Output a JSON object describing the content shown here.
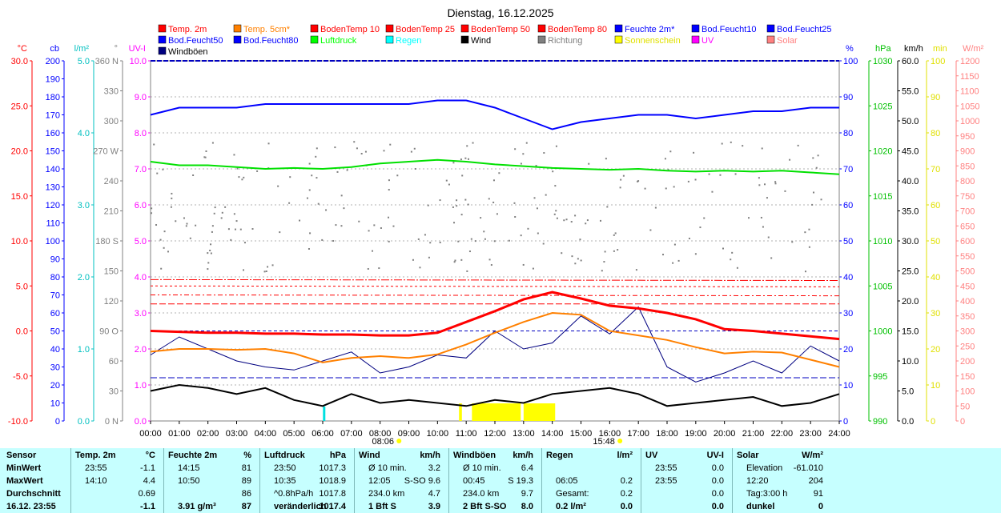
{
  "chart_data": {
    "type": "line",
    "title": "Dienstag, 16.12.2025",
    "x_ticks": [
      "00:00",
      "01:00",
      "02:00",
      "03:00",
      "04:00",
      "05:00",
      "06:00",
      "07:00",
      "08:00",
      "09:00",
      "10:00",
      "11:00",
      "12:00",
      "13:00",
      "14:00",
      "15:00",
      "16:00",
      "17:00",
      "18:00",
      "19:00",
      "20:00",
      "21:00",
      "22:00",
      "23:00",
      "24:00"
    ],
    "sunrise_label": "08:06",
    "sunset_label": "15:48",
    "legend": [
      {
        "name": "Temp. 2m",
        "color": "#ff0000"
      },
      {
        "name": "Temp. 5cm*",
        "color": "#ff8000"
      },
      {
        "name": "BodenTemp 10",
        "color": "#ff0000"
      },
      {
        "name": "BodenTemp 25",
        "color": "#ff0000"
      },
      {
        "name": "BodenTemp 50",
        "color": "#ff0000"
      },
      {
        "name": "BodenTemp 80",
        "color": "#ff0000"
      },
      {
        "name": "Feuchte 2m*",
        "color": "#0000ff"
      },
      {
        "name": "Bod.Feucht10",
        "color": "#0000ff"
      },
      {
        "name": "Bod.Feucht25",
        "color": "#0000ff"
      },
      {
        "name": "Bod.Feucht50",
        "color": "#0000ff"
      },
      {
        "name": "Bod.Feucht80",
        "color": "#0000ff"
      },
      {
        "name": "Luftdruck",
        "color": "#00ff00"
      },
      {
        "name": "Regen",
        "color": "#00ffff"
      },
      {
        "name": "Wind",
        "color": "#000000"
      },
      {
        "name": "Richtung",
        "color": "#808080"
      },
      {
        "name": "Sonnenschein",
        "color": "#ffff00"
      },
      {
        "name": "UV",
        "color": "#ff00ff"
      },
      {
        "name": "Solar",
        "color": "#ff8080"
      },
      {
        "name": "Windböen",
        "color": "#000080"
      }
    ],
    "axes": [
      {
        "unit": "°C",
        "color": "#ff0000",
        "ticks": [
          "30.0",
          "25.0",
          "20.0",
          "15.0",
          "10.0",
          "5.0",
          "0.0",
          "-5.0",
          "-10.0"
        ]
      },
      {
        "unit": "cb",
        "color": "#0000ff",
        "ticks": [
          "200",
          "190",
          "180",
          "170",
          "160",
          "150",
          "140",
          "130",
          "120",
          "110",
          "100",
          "90",
          "80",
          "70",
          "60",
          "50",
          "40",
          "30",
          "20",
          "10",
          "0"
        ]
      },
      {
        "unit": "l/m²",
        "color": "#00c0c0",
        "ticks": [
          "5.0",
          "4.0",
          "3.0",
          "2.0",
          "1.0",
          "0.0"
        ]
      },
      {
        "unit": "°",
        "color": "#808080",
        "ticks": [
          "360 N",
          "330",
          "300",
          "270 W",
          "240",
          "210",
          "180 S",
          "150",
          "120",
          "90 O",
          "60",
          "30",
          "0 N"
        ]
      },
      {
        "unit": "UV-I",
        "color": "#ff00ff",
        "ticks": [
          "10.0",
          "9.0",
          "8.0",
          "7.0",
          "6.0",
          "5.0",
          "4.0",
          "3.0",
          "2.0",
          "1.0",
          "0.0"
        ]
      },
      {
        "unit": "%",
        "color": "#0000ff",
        "ticks": [
          "100",
          "90",
          "80",
          "70",
          "60",
          "50",
          "40",
          "30",
          "20",
          "10",
          "0"
        ]
      },
      {
        "unit": "hPa",
        "color": "#00c000",
        "ticks": [
          "1030",
          "1025",
          "1020",
          "1015",
          "1010",
          "1005",
          "1000",
          "995",
          "990"
        ]
      },
      {
        "unit": "km/h",
        "color": "#000000",
        "ticks": [
          "60.0",
          "55.0",
          "50.0",
          "45.0",
          "40.0",
          "35.0",
          "30.0",
          "25.0",
          "20.0",
          "15.0",
          "10.0",
          "5.0",
          "0.0"
        ]
      },
      {
        "unit": "min",
        "color": "#e0e000",
        "ticks": [
          "100",
          "90",
          "80",
          "70",
          "60",
          "50",
          "40",
          "30",
          "20",
          "10",
          "0"
        ]
      },
      {
        "unit": "W/m²",
        "color": "#ff8080",
        "ticks": [
          "1200",
          "1150",
          "1100",
          "1050",
          "1000",
          "950",
          "900",
          "850",
          "800",
          "750",
          "700",
          "650",
          "600",
          "550",
          "500",
          "450",
          "400",
          "350",
          "300",
          "250",
          "200",
          "150",
          "100",
          "50",
          "0"
        ]
      }
    ],
    "series": [
      {
        "name": "Temp. 2m",
        "unit": "°C",
        "x": [
          0,
          1,
          2,
          3,
          4,
          5,
          6,
          7,
          8,
          9,
          10,
          11,
          12,
          13,
          14,
          15,
          16,
          17,
          18,
          19,
          20,
          21,
          22,
          23,
          24
        ],
        "values": [
          0.0,
          -0.1,
          -0.2,
          -0.2,
          -0.3,
          -0.3,
          -0.4,
          -0.4,
          -0.5,
          -0.5,
          -0.2,
          1.0,
          2.2,
          3.5,
          4.3,
          3.6,
          2.8,
          2.5,
          2.0,
          1.3,
          0.2,
          0.0,
          -0.3,
          -0.6,
          -0.9
        ]
      },
      {
        "name": "Temp. 5cm*",
        "unit": "°C",
        "x": [
          0,
          1,
          2,
          3,
          4,
          5,
          6,
          7,
          8,
          9,
          10,
          11,
          12,
          13,
          14,
          15,
          16,
          17,
          18,
          19,
          20,
          21,
          22,
          23,
          24
        ],
        "values": [
          -2.3,
          -2.0,
          -2.0,
          -2.1,
          -2.0,
          -2.5,
          -3.5,
          -3.0,
          -2.8,
          -3.0,
          -2.6,
          -1.5,
          -0.2,
          1.0,
          2.0,
          1.8,
          0.0,
          -0.5,
          -1.0,
          -1.8,
          -2.5,
          -2.3,
          -2.4,
          -3.2,
          -4.0
        ]
      },
      {
        "name": "BodenTemp 10",
        "unit": "°C",
        "x": [
          0,
          24
        ],
        "values": [
          3.0,
          3.0
        ]
      },
      {
        "name": "BodenTemp 25",
        "unit": "°C",
        "x": [
          0,
          24
        ],
        "values": [
          4.0,
          3.9
        ]
      },
      {
        "name": "BodenTemp 50",
        "unit": "°C",
        "x": [
          0,
          24
        ],
        "values": [
          5.0,
          4.9
        ]
      },
      {
        "name": "BodenTemp 80",
        "unit": "°C",
        "x": [
          0,
          24
        ],
        "values": [
          5.7,
          5.6
        ]
      },
      {
        "name": "Feuchte 2m*",
        "unit": "%",
        "x": [
          0,
          1,
          2,
          3,
          4,
          5,
          6,
          7,
          8,
          9,
          10,
          11,
          12,
          13,
          14,
          15,
          16,
          17,
          18,
          19,
          20,
          21,
          22,
          23,
          24
        ],
        "values": [
          85,
          87,
          87,
          87,
          88,
          88,
          88,
          88,
          88,
          88,
          89,
          89,
          87,
          84,
          81,
          83,
          84,
          85,
          85,
          84,
          85,
          86,
          86,
          87,
          87
        ]
      },
      {
        "name": "Bod.Feucht10",
        "unit": "%",
        "x": [
          0,
          24
        ],
        "values": [
          100,
          100
        ]
      },
      {
        "name": "Bod.Feucht50",
        "unit": "%",
        "x": [
          0,
          24
        ],
        "values": [
          25,
          25
        ]
      },
      {
        "name": "Bod.Feucht80",
        "unit": "%",
        "x": [
          0,
          24
        ],
        "values": [
          12,
          12
        ]
      },
      {
        "name": "Luftdruck",
        "unit": "hPa",
        "x": [
          0,
          1,
          2,
          3,
          4,
          5,
          6,
          7,
          8,
          9,
          10,
          11,
          12,
          13,
          14,
          15,
          16,
          17,
          18,
          19,
          20,
          21,
          22,
          23,
          24
        ],
        "values": [
          1018.8,
          1018.4,
          1018.4,
          1018.2,
          1018.0,
          1018.1,
          1018.0,
          1018.2,
          1018.6,
          1018.8,
          1019.0,
          1018.8,
          1018.5,
          1018.3,
          1018.1,
          1018.0,
          1017.9,
          1018.0,
          1017.8,
          1017.7,
          1017.8,
          1017.7,
          1017.8,
          1017.6,
          1017.4
        ]
      },
      {
        "name": "Wind",
        "unit": "km/h",
        "x": [
          0,
          1,
          2,
          3,
          4,
          5,
          6,
          7,
          8,
          9,
          10,
          11,
          12,
          13,
          14,
          15,
          16,
          17,
          18,
          19,
          20,
          21,
          22,
          23,
          24
        ],
        "values": [
          5.0,
          6.0,
          5.5,
          4.5,
          5.5,
          3.5,
          2.5,
          4.5,
          3.0,
          3.5,
          3.0,
          2.5,
          3.5,
          3.0,
          4.5,
          5.0,
          5.5,
          4.5,
          2.5,
          3.0,
          3.5,
          4.0,
          2.5,
          3.0,
          4.5
        ]
      },
      {
        "name": "Windböen",
        "unit": "km/h",
        "x": [
          0,
          1,
          2,
          3,
          4,
          5,
          6,
          7,
          8,
          9,
          10,
          11,
          12,
          13,
          14,
          15,
          16,
          17,
          18,
          19,
          20,
          21,
          22,
          23,
          24
        ],
        "values": [
          11.0,
          14.0,
          12.0,
          10.0,
          9.0,
          8.5,
          10.0,
          11.5,
          8.0,
          9.0,
          11.0,
          10.5,
          15.0,
          12.0,
          13.0,
          17.5,
          14.5,
          19.0,
          9.0,
          6.5,
          8.0,
          10.0,
          8.0,
          12.5,
          10.0
        ]
      },
      {
        "name": "Regen",
        "unit": "l/m²",
        "x": [
          6.05
        ],
        "values": [
          0.2
        ]
      },
      {
        "name": "Sonnenschein",
        "unit": "min",
        "intervals": [
          [
            10.75,
            10.85
          ],
          [
            11.2,
            12.9
          ],
          [
            13.0,
            14.1
          ]
        ],
        "values": [
          10,
          10,
          10
        ]
      }
    ],
    "xlim": [
      0,
      24
    ]
  },
  "stats": {
    "columns": [
      {
        "head": [
          "Sensor",
          "",
          ""
        ],
        "rows": [
          [
            "MinWert",
            "",
            ""
          ],
          [
            "MaxWert",
            "",
            ""
          ],
          [
            "Durchschnitt",
            "",
            ""
          ],
          [
            "16.12. 23:55",
            "",
            ""
          ]
        ]
      },
      {
        "head": [
          "Temp. 2m",
          "°C"
        ],
        "rows": [
          [
            "23:55",
            "-1.1"
          ],
          [
            "14:10",
            "4.4"
          ],
          [
            "",
            "0.69"
          ],
          [
            "",
            "-1.1"
          ]
        ]
      },
      {
        "head": [
          "Feuchte 2m",
          "%"
        ],
        "rows": [
          [
            "14:15",
            "81"
          ],
          [
            "10:50",
            "89"
          ],
          [
            "",
            "86"
          ],
          [
            "3.91 g/m³",
            "87"
          ]
        ]
      },
      {
        "head": [
          "Luftdruck",
          "hPa"
        ],
        "rows": [
          [
            "23:50",
            "1017.3"
          ],
          [
            "10:35",
            "1018.9"
          ],
          [
            "^0.8hPa/h",
            "1017.8"
          ],
          [
            "veränderlich",
            "1017.4"
          ]
        ]
      },
      {
        "head": [
          "Wind",
          "km/h"
        ],
        "rows": [
          [
            "Ø 10 min.",
            "3.2"
          ],
          [
            "12:05",
            "S-SO 9.6"
          ],
          [
            "234.0 km",
            "4.7"
          ],
          [
            "1 Bft S",
            "3.9"
          ]
        ]
      },
      {
        "head": [
          "Windböen",
          "km/h"
        ],
        "rows": [
          [
            "Ø 10 min.",
            "6.4"
          ],
          [
            "00:45",
            "S 19.3"
          ],
          [
            "234.0 km",
            "9.7"
          ],
          [
            "2 Bft S-SO",
            "8.0"
          ]
        ]
      },
      {
        "head": [
          "Regen",
          "l/m²"
        ],
        "rows": [
          [
            "",
            ""
          ],
          [
            "06:05",
            "0.2"
          ],
          [
            "Gesamt:",
            "0.2"
          ],
          [
            "0.2 l/m²",
            "0.0"
          ]
        ]
      },
      {
        "head": [
          "UV",
          "UV-I"
        ],
        "rows": [
          [
            "23:55",
            "0.0"
          ],
          [
            "23:55",
            "0.0"
          ],
          [
            "",
            "0.0"
          ],
          [
            "",
            "0.0"
          ]
        ]
      },
      {
        "head": [
          "Solar",
          "W/m²"
        ],
        "rows": [
          [
            "Elevation",
            "-61.010"
          ],
          [
            "12:20",
            "204"
          ],
          [
            "Tag:3:00 h",
            "91"
          ],
          [
            "dunkel",
            "0"
          ]
        ]
      }
    ]
  }
}
